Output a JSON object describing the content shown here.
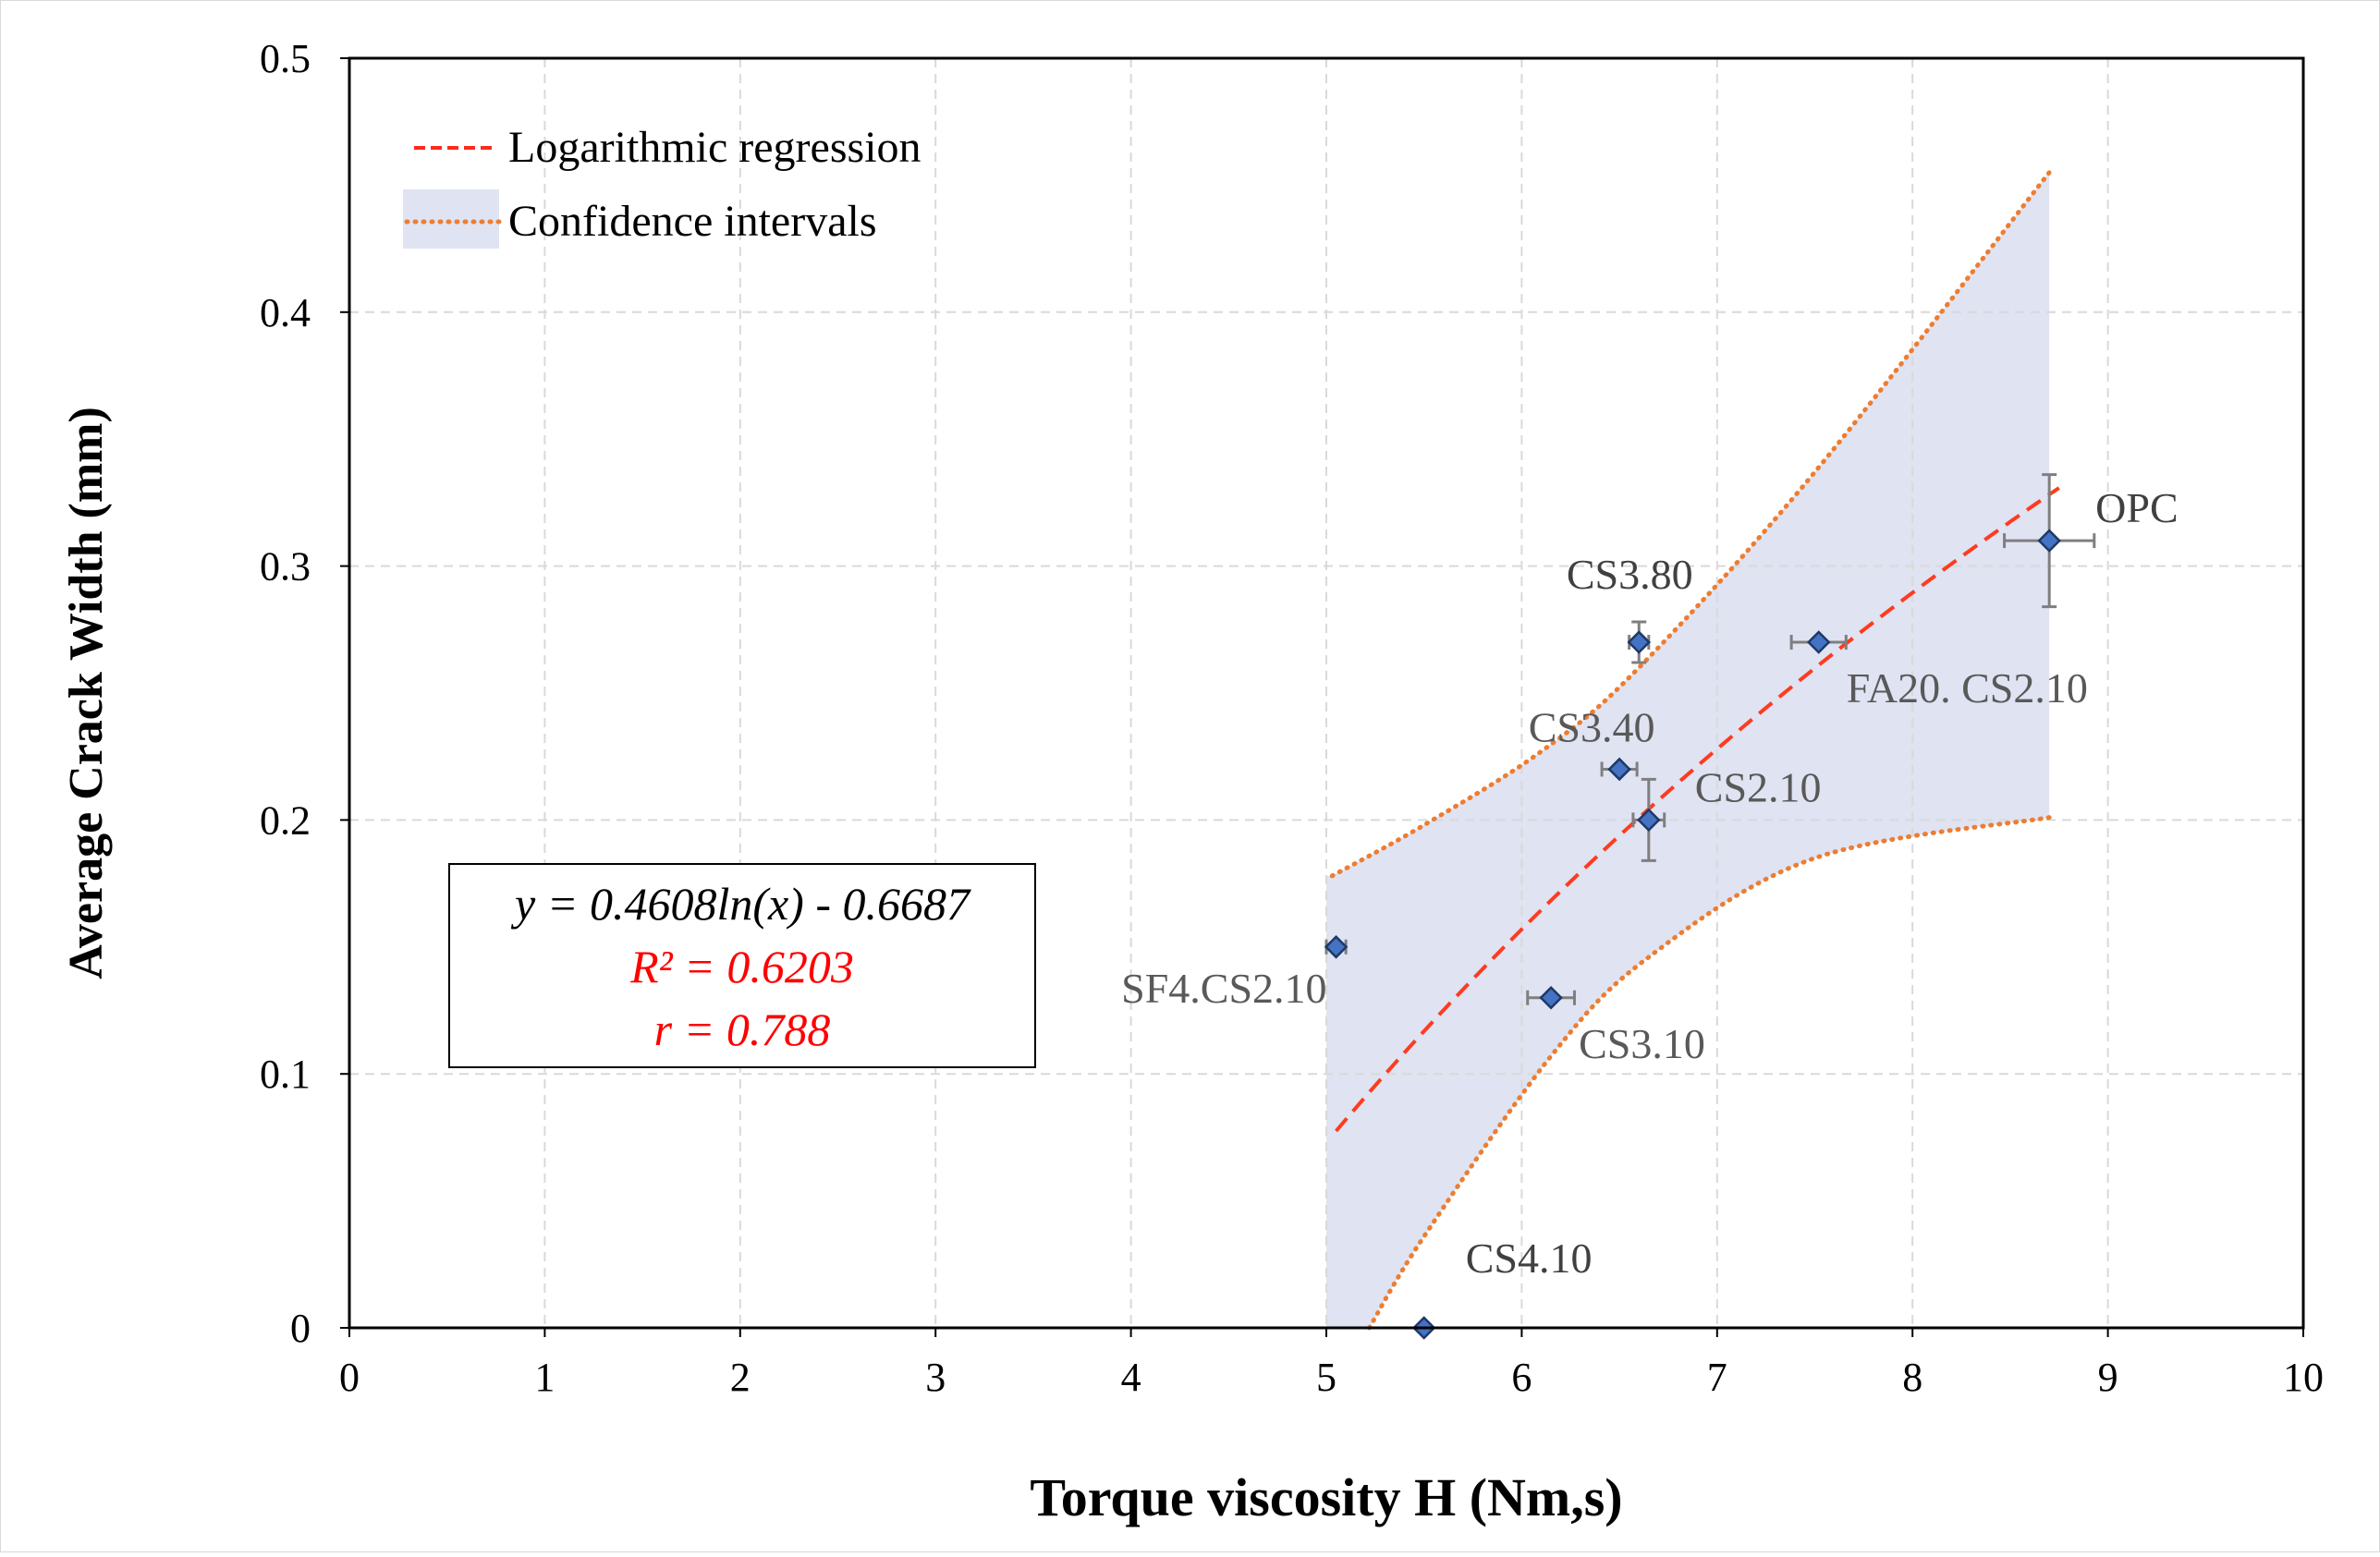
{
  "chart_data": {
    "type": "scatter",
    "xlabel": "Torque viscosity H (Nm,s)",
    "ylabel": "Average Crack Width (mm)",
    "xlim": [
      0,
      10
    ],
    "ylim": [
      0,
      0.5
    ],
    "x_ticks": [
      0,
      1,
      2,
      3,
      4,
      5,
      6,
      7,
      8,
      9,
      10
    ],
    "y_ticks": [
      0,
      0.1,
      0.2,
      0.3,
      0.4,
      0.5
    ],
    "x_tick_labels": [
      "0",
      "1",
      "2",
      "3",
      "4",
      "5",
      "6",
      "7",
      "8",
      "9",
      "10"
    ],
    "y_tick_labels": [
      "0",
      "0.1",
      "0.2",
      "0.3",
      "0.4",
      "0.5"
    ],
    "grid": true,
    "legend": {
      "placement": "top-left",
      "entries": [
        "Logarithmic regression",
        "Confidence intervals"
      ]
    },
    "points": [
      {
        "label": "OPC",
        "x": 8.7,
        "y": 0.31,
        "xerr": 0.23,
        "yerr_up": 0.026,
        "yerr_down": 0.026,
        "label_pos": "right",
        "label_color": "#404040"
      },
      {
        "label": "CS3.80",
        "x": 6.6,
        "y": 0.27,
        "xerr": 0.05,
        "yerr_up": 0.008,
        "yerr_down": 0.008,
        "label_pos": "above",
        "label_color": "#404040"
      },
      {
        "label": "FA20. CS2.10",
        "x": 7.52,
        "y": 0.27,
        "xerr": 0.14,
        "yerr_up": 0.0,
        "yerr_down": 0.0,
        "label_pos": "below-right",
        "label_color": "#595959"
      },
      {
        "label": "CS3.40",
        "x": 6.5,
        "y": 0.22,
        "xerr": 0.09,
        "yerr_up": 0.0,
        "yerr_down": 0.0,
        "label_pos": "above-left",
        "label_color": "#595959"
      },
      {
        "label": "CS2.10",
        "x": 6.65,
        "y": 0.2,
        "xerr": 0.08,
        "yerr_up": 0.016,
        "yerr_down": 0.016,
        "label_pos": "right",
        "label_color": "#595959"
      },
      {
        "label": "SF4.CS2.10",
        "x": 5.05,
        "y": 0.15,
        "xerr": 0.05,
        "yerr_up": 0.0,
        "yerr_down": 0.0,
        "label_pos": "below-left",
        "label_color": "#595959"
      },
      {
        "label": "CS3.10",
        "x": 6.15,
        "y": 0.13,
        "xerr": 0.12,
        "yerr_up": 0.0,
        "yerr_down": 0.0,
        "label_pos": "below-right",
        "label_color": "#595959"
      },
      {
        "label": "CS4.10",
        "x": 5.5,
        "y": 0.0,
        "xerr": 0.0,
        "yerr_up": 0.0,
        "yerr_down": 0.0,
        "label_pos": "above-right",
        "label_color": "#404040"
      }
    ],
    "regression": {
      "type": "logarithmic",
      "a": 0.4608,
      "b": -0.6687,
      "x_range": [
        5.05,
        8.75
      ],
      "color": "#ff3b1f"
    },
    "confidence_upper": [
      {
        "x": 5.03,
        "y": 0.178
      },
      {
        "x": 5.5,
        "y": 0.198
      },
      {
        "x": 6.1,
        "y": 0.227
      },
      {
        "x": 6.6,
        "y": 0.26
      },
      {
        "x": 7.5,
        "y": 0.337
      },
      {
        "x": 8.7,
        "y": 0.455
      }
    ],
    "confidence_lower": [
      {
        "x": 5.22,
        "y": 0.0
      },
      {
        "x": 5.5,
        "y": 0.036
      },
      {
        "x": 6.15,
        "y": 0.107
      },
      {
        "x": 6.65,
        "y": 0.146
      },
      {
        "x": 7.5,
        "y": 0.185
      },
      {
        "x": 8.7,
        "y": 0.201
      }
    ],
    "confidence_band_x": [
      5.0,
      8.7
    ],
    "colors": {
      "band_fill": "#dfe3f2",
      "ci_line": "#ed7d31",
      "marker_fill": "#4472c4",
      "marker_stroke": "#1f3864",
      "grid": "#d9d9d9",
      "error_bar": "#7f7f7f"
    },
    "annotation": {
      "equation": "y = 0.4608ln(x) - 0.6687",
      "r_squared": "R² = 0.6203",
      "r": "r = 0.788",
      "placement": "left-middle"
    }
  }
}
